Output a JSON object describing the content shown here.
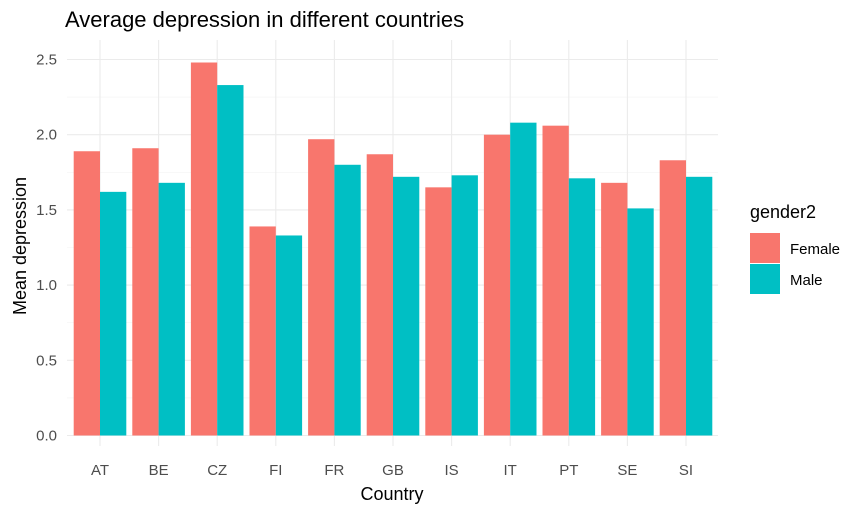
{
  "chart_data": {
    "type": "bar",
    "title": "Average depression in different countries",
    "xlabel": "Country",
    "ylabel": "Mean depression",
    "categories": [
      "AT",
      "BE",
      "CZ",
      "FI",
      "FR",
      "GB",
      "IS",
      "IT",
      "PT",
      "SE",
      "SI"
    ],
    "series": [
      {
        "name": "Female",
        "color": "#F8766D",
        "values": [
          1.89,
          1.91,
          2.48,
          1.39,
          1.97,
          1.87,
          1.65,
          2.0,
          2.06,
          1.68,
          1.83
        ]
      },
      {
        "name": "Male",
        "color": "#00BFC4",
        "values": [
          1.62,
          1.68,
          2.33,
          1.33,
          1.8,
          1.72,
          1.73,
          2.08,
          1.71,
          1.51,
          1.72
        ]
      }
    ],
    "ylim": [
      0,
      2.55
    ],
    "yticks": [
      "0.0",
      "0.5",
      "1.0",
      "1.5",
      "2.0",
      "2.5"
    ],
    "grid": true,
    "legend": {
      "title": "gender2",
      "position": "right"
    }
  }
}
